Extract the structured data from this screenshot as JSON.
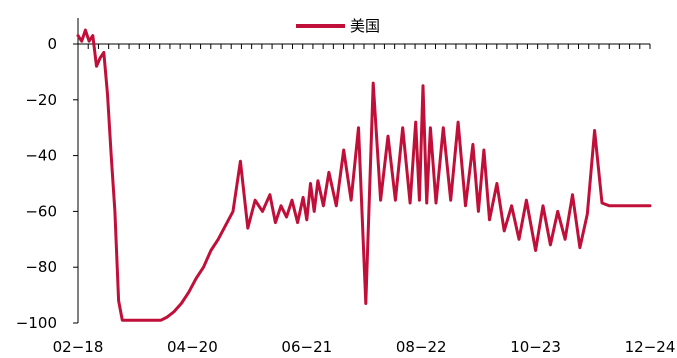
{
  "chart_data": {
    "type": "line",
    "title": "",
    "xlabel": "",
    "ylabel": "",
    "x_tick_labels": [
      "02-18",
      "04-20",
      "06-21",
      "08-22",
      "10-23",
      "12-24"
    ],
    "ylim": [
      -100,
      10
    ],
    "y_ticks": [
      0,
      -20,
      -40,
      -60,
      -80,
      -100
    ],
    "y_tick_labels": [
      "0",
      "−20",
      "−40",
      "−60",
      "−80",
      "−100"
    ],
    "legend_position": "top-center",
    "series": [
      {
        "name": "美国",
        "color": "#c0103a",
        "x": [
          "02-18",
          "02-20",
          "02-22",
          "02-24",
          "02-26",
          "02-28",
          "03-01",
          "03-03",
          "03-05",
          "03-07",
          "03-09",
          "03-11",
          "03-13",
          "03-15",
          "03-17",
          "03-19",
          "03-21",
          "03-23",
          "03-25",
          "03-27",
          "03-29",
          "03-31",
          "04-03",
          "04-06",
          "04-10",
          "04-14",
          "04-18",
          "04-22",
          "04-26",
          "04-30",
          "05-04",
          "05-08",
          "05-12",
          "05-16",
          "05-20",
          "05-24",
          "05-28",
          "06-01",
          "06-04",
          "06-07",
          "06-10",
          "06-13",
          "06-16",
          "06-19",
          "06-21",
          "06-23",
          "06-25",
          "06-27",
          "06-30",
          "07-03",
          "07-07",
          "07-11",
          "07-15",
          "07-19",
          "07-23",
          "07-27",
          "07-31",
          "08-04",
          "08-08",
          "08-12",
          "08-16",
          "08-19",
          "08-21",
          "08-23",
          "08-25",
          "08-27",
          "08-30",
          "09-03",
          "09-07",
          "09-11",
          "09-15",
          "09-19",
          "09-22",
          "09-25",
          "09-28",
          "10-02",
          "10-06",
          "10-10",
          "10-14",
          "10-18",
          "10-23",
          "10-27",
          "10-31",
          "11-04",
          "11-08",
          "11-12",
          "11-16",
          "11-20",
          "11-24",
          "11-28",
          "12-02",
          "12-06",
          "12-10",
          "12-14",
          "12-18",
          "12-20",
          "12-22",
          "12-24"
        ],
        "values": [
          3,
          1,
          5,
          1,
          3,
          -8,
          -5,
          -3,
          -18,
          -40,
          -60,
          -92,
          -99,
          -99,
          -99,
          -99,
          -99,
          -99,
          -99,
          -99,
          -99,
          -99,
          -99,
          -98,
          -96,
          -93,
          -89,
          -84,
          -80,
          -74,
          -70,
          -65,
          -60,
          -42,
          -66,
          -56,
          -60,
          -54,
          -64,
          -58,
          -62,
          -56,
          -64,
          -55,
          -63,
          -50,
          -60,
          -49,
          -58,
          -46,
          -58,
          -38,
          -56,
          -30,
          -93,
          -14,
          -56,
          -33,
          -56,
          -30,
          -57,
          -28,
          -56,
          -15,
          -57,
          -30,
          -57,
          -30,
          -56,
          -28,
          -58,
          -36,
          -60,
          -38,
          -63,
          -50,
          -67,
          -58,
          -70,
          -56,
          -74,
          -58,
          -72,
          -60,
          -70,
          -54,
          -73,
          -61,
          -31,
          -57,
          -58,
          -58,
          -58,
          -58,
          -58,
          -58,
          -58,
          -58
        ]
      }
    ]
  }
}
